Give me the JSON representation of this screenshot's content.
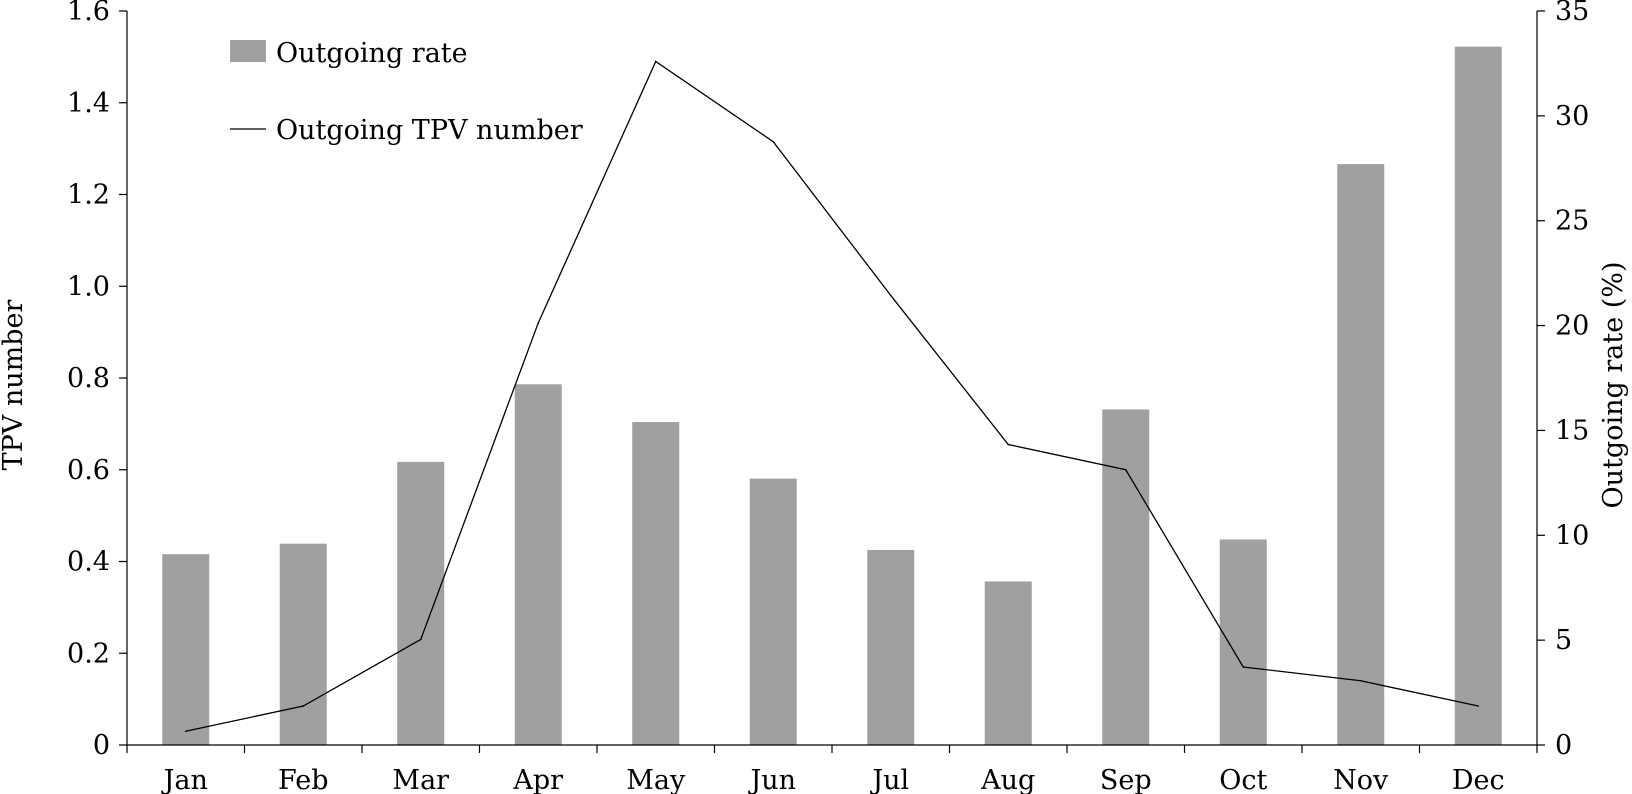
{
  "chart_data": {
    "type": "bar",
    "categories": [
      "Jan",
      "Feb",
      "Mar",
      "Apr",
      "May",
      "Jun",
      "Jul",
      "Aug",
      "Sep",
      "Oct",
      "Nov",
      "Dec"
    ],
    "series": [
      {
        "name": "Outgoing rate",
        "type": "bar",
        "axis": "right",
        "color": "#a0a0a0",
        "values": [
          9.1,
          9.6,
          13.5,
          17.2,
          15.4,
          12.7,
          9.3,
          7.8,
          16.0,
          9.8,
          27.7,
          33.3
        ]
      },
      {
        "name": "Outgoing TPV number",
        "type": "line",
        "axis": "left",
        "color": "#000000",
        "values": [
          0.03,
          0.085,
          0.23,
          0.92,
          1.49,
          1.315,
          0.98,
          0.655,
          0.6,
          0.17,
          0.14,
          0.085
        ]
      }
    ],
    "ylabel": "TPV number",
    "ylim": [
      0,
      1.6
    ],
    "yticks": [
      "0",
      "0.2",
      "0.4",
      "0.6",
      "0.8",
      "1.0",
      "1.2",
      "1.4",
      "1.6"
    ],
    "y2label": "Outgoing rate (%)",
    "y2lim": [
      0,
      35
    ],
    "y2ticks": [
      "0",
      "5",
      "10",
      "15",
      "20",
      "25",
      "30",
      "35"
    ],
    "legend_position": "top-left",
    "grid": false
  }
}
